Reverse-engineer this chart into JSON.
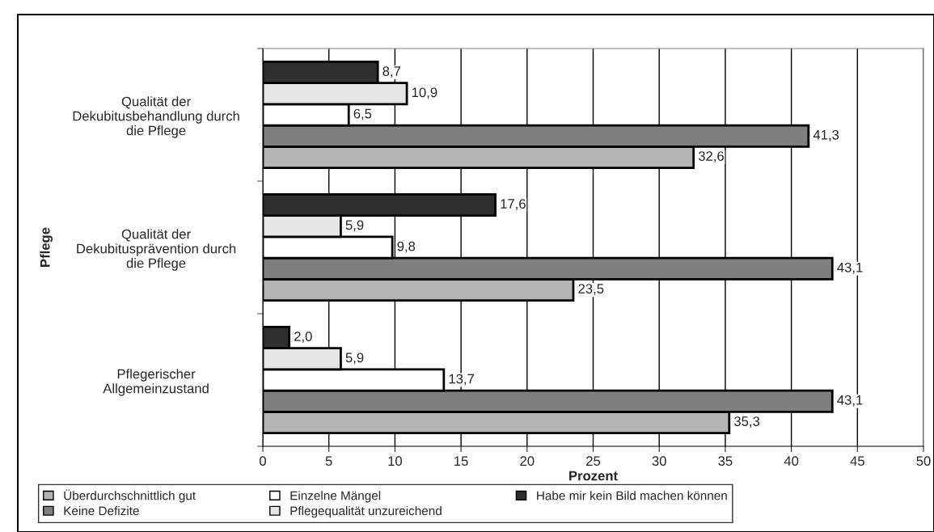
{
  "chart_data": {
    "type": "bar",
    "orientation": "horizontal",
    "xlabel": "Prozent",
    "ylabel": "Pflege",
    "categories": [
      "Qualität der\nDekubitusbehandlung durch\ndie Pflege",
      "Qualität der\nDekubitusprävention durch\ndie Pflege",
      "Pflegerischer\nAllgemeinzustand"
    ],
    "series": [
      {
        "name": "Überdurchschnittlich gut",
        "color": "#b4b4b4",
        "values": [
          32.6,
          23.5,
          35.3
        ],
        "value_labels": [
          "32,6",
          "23,5",
          "35,3"
        ]
      },
      {
        "name": "Keine Defizite",
        "color": "#7f7f7f",
        "values": [
          41.3,
          43.1,
          43.1
        ],
        "value_labels": [
          "41,3",
          "43,1",
          "43,1"
        ]
      },
      {
        "name": "Einzelne Mängel",
        "color": "#ffffff",
        "values": [
          6.5,
          9.8,
          13.7
        ],
        "value_labels": [
          "6,5",
          "9,8",
          "13,7"
        ]
      },
      {
        "name": "Pflegequalität unzureichend",
        "color": "#e6e6e6",
        "values": [
          10.9,
          5.9,
          5.9
        ],
        "value_labels": [
          "10,9",
          "5,9",
          "5,9"
        ]
      },
      {
        "name": "Habe mir kein Bild machen können",
        "color": "#2f2f2f",
        "values": [
          8.7,
          17.6,
          2.0
        ],
        "value_labels": [
          "8,7",
          "17,6",
          "2,0"
        ]
      }
    ],
    "xlim": [
      0,
      50
    ],
    "xticks": [
      0,
      5,
      10,
      15,
      20,
      25,
      30,
      35,
      40,
      45,
      50
    ],
    "grid": "x",
    "legend": "bottom"
  }
}
